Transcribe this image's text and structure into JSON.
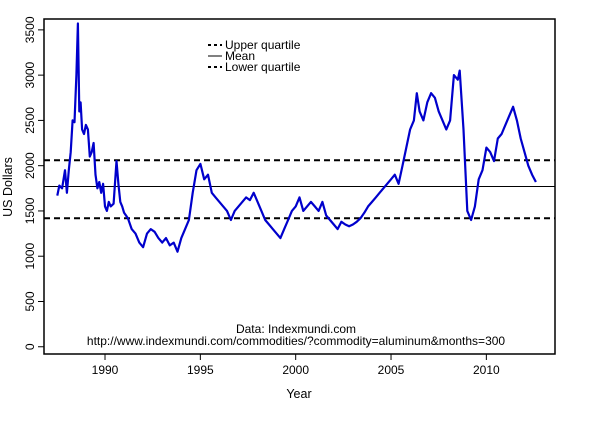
{
  "chart_data": {
    "type": "line",
    "xlabel": "Year",
    "ylabel": "US Dollars",
    "xlim": [
      1986.8,
      2013.6
    ],
    "ylim": [
      -80,
      3620
    ],
    "x_ticks": [
      1990,
      1995,
      2000,
      2005,
      2010
    ],
    "y_ticks": [
      0,
      500,
      1000,
      1500,
      2000,
      2500,
      3000,
      3500
    ],
    "grid": false,
    "legend_position": "top-center",
    "legend": [
      {
        "label": "Upper quartile",
        "style": "dashed"
      },
      {
        "label": "Mean",
        "style": "solid"
      },
      {
        "label": "Lower quartile",
        "style": "dashed"
      }
    ],
    "annotation": {
      "line1": "Data: Indexmundi.com",
      "line2": "http://www.indexmundi.com/commodities/?commodity=aluminum&months=300"
    },
    "reference_lines": {
      "upper_quartile": 2060,
      "mean": 1770,
      "lower_quartile": 1420
    },
    "colors": {
      "series": "#0000cc",
      "reference": "#000000"
    },
    "series": [
      {
        "values": [
          [
            1987.5,
            1670
          ],
          [
            1987.6,
            1780
          ],
          [
            1987.75,
            1750
          ],
          [
            1987.9,
            1950
          ],
          [
            1988.0,
            1700
          ],
          [
            1988.1,
            1950
          ],
          [
            1988.2,
            2150
          ],
          [
            1988.3,
            2500
          ],
          [
            1988.4,
            2480
          ],
          [
            1988.5,
            3000
          ],
          [
            1988.58,
            3570
          ],
          [
            1988.65,
            2600
          ],
          [
            1988.72,
            2700
          ],
          [
            1988.8,
            2400
          ],
          [
            1988.9,
            2350
          ],
          [
            1989.0,
            2450
          ],
          [
            1989.1,
            2400
          ],
          [
            1989.2,
            2100
          ],
          [
            1989.3,
            2150
          ],
          [
            1989.4,
            2250
          ],
          [
            1989.5,
            1900
          ],
          [
            1989.6,
            1750
          ],
          [
            1989.7,
            1820
          ],
          [
            1989.8,
            1700
          ],
          [
            1989.9,
            1800
          ],
          [
            1990.0,
            1550
          ],
          [
            1990.1,
            1500
          ],
          [
            1990.2,
            1600
          ],
          [
            1990.3,
            1550
          ],
          [
            1990.45,
            1580
          ],
          [
            1990.6,
            2050
          ],
          [
            1990.7,
            1800
          ],
          [
            1990.8,
            1600
          ],
          [
            1990.9,
            1550
          ],
          [
            1991.0,
            1480
          ],
          [
            1991.2,
            1420
          ],
          [
            1991.4,
            1300
          ],
          [
            1991.6,
            1250
          ],
          [
            1991.8,
            1150
          ],
          [
            1992.0,
            1100
          ],
          [
            1992.2,
            1250
          ],
          [
            1992.4,
            1300
          ],
          [
            1992.6,
            1270
          ],
          [
            1992.8,
            1200
          ],
          [
            1993.0,
            1150
          ],
          [
            1993.2,
            1200
          ],
          [
            1993.4,
            1120
          ],
          [
            1993.6,
            1150
          ],
          [
            1993.8,
            1050
          ],
          [
            1994.0,
            1200
          ],
          [
            1994.2,
            1300
          ],
          [
            1994.4,
            1400
          ],
          [
            1994.6,
            1700
          ],
          [
            1994.8,
            1950
          ],
          [
            1995.0,
            2020
          ],
          [
            1995.2,
            1850
          ],
          [
            1995.4,
            1900
          ],
          [
            1995.6,
            1700
          ],
          [
            1995.8,
            1650
          ],
          [
            1996.0,
            1600
          ],
          [
            1996.2,
            1550
          ],
          [
            1996.4,
            1500
          ],
          [
            1996.6,
            1400
          ],
          [
            1996.8,
            1500
          ],
          [
            1997.0,
            1550
          ],
          [
            1997.2,
            1600
          ],
          [
            1997.4,
            1650
          ],
          [
            1997.6,
            1620
          ],
          [
            1997.8,
            1700
          ],
          [
            1998.0,
            1600
          ],
          [
            1998.2,
            1500
          ],
          [
            1998.4,
            1400
          ],
          [
            1998.6,
            1350
          ],
          [
            1998.8,
            1300
          ],
          [
            1999.0,
            1250
          ],
          [
            1999.2,
            1200
          ],
          [
            1999.4,
            1300
          ],
          [
            1999.6,
            1400
          ],
          [
            1999.8,
            1500
          ],
          [
            2000.0,
            1550
          ],
          [
            2000.2,
            1650
          ],
          [
            2000.4,
            1500
          ],
          [
            2000.6,
            1550
          ],
          [
            2000.8,
            1600
          ],
          [
            2001.0,
            1550
          ],
          [
            2001.2,
            1500
          ],
          [
            2001.4,
            1600
          ],
          [
            2001.6,
            1450
          ],
          [
            2001.8,
            1400
          ],
          [
            2002.0,
            1350
          ],
          [
            2002.2,
            1300
          ],
          [
            2002.4,
            1380
          ],
          [
            2002.6,
            1350
          ],
          [
            2002.8,
            1330
          ],
          [
            2003.0,
            1350
          ],
          [
            2003.2,
            1380
          ],
          [
            2003.4,
            1420
          ],
          [
            2003.6,
            1480
          ],
          [
            2003.8,
            1550
          ],
          [
            2004.0,
            1600
          ],
          [
            2004.2,
            1650
          ],
          [
            2004.4,
            1700
          ],
          [
            2004.6,
            1750
          ],
          [
            2004.8,
            1800
          ],
          [
            2005.0,
            1850
          ],
          [
            2005.2,
            1900
          ],
          [
            2005.4,
            1800
          ],
          [
            2005.6,
            2000
          ],
          [
            2005.8,
            2200
          ],
          [
            2006.0,
            2400
          ],
          [
            2006.2,
            2500
          ],
          [
            2006.35,
            2800
          ],
          [
            2006.5,
            2600
          ],
          [
            2006.7,
            2500
          ],
          [
            2006.9,
            2700
          ],
          [
            2007.1,
            2800
          ],
          [
            2007.3,
            2750
          ],
          [
            2007.5,
            2600
          ],
          [
            2007.7,
            2500
          ],
          [
            2007.9,
            2400
          ],
          [
            2008.1,
            2500
          ],
          [
            2008.3,
            3000
          ],
          [
            2008.5,
            2950
          ],
          [
            2008.6,
            3050
          ],
          [
            2008.8,
            2400
          ],
          [
            2009.0,
            1500
          ],
          [
            2009.2,
            1400
          ],
          [
            2009.4,
            1550
          ],
          [
            2009.6,
            1850
          ],
          [
            2009.8,
            1950
          ],
          [
            2010.0,
            2200
          ],
          [
            2010.2,
            2150
          ],
          [
            2010.4,
            2050
          ],
          [
            2010.6,
            2300
          ],
          [
            2010.8,
            2350
          ],
          [
            2011.0,
            2450
          ],
          [
            2011.2,
            2550
          ],
          [
            2011.4,
            2650
          ],
          [
            2011.6,
            2500
          ],
          [
            2011.8,
            2300
          ],
          [
            2012.0,
            2150
          ],
          [
            2012.2,
            2000
          ],
          [
            2012.4,
            1900
          ],
          [
            2012.6,
            1820
          ]
        ]
      }
    ]
  }
}
